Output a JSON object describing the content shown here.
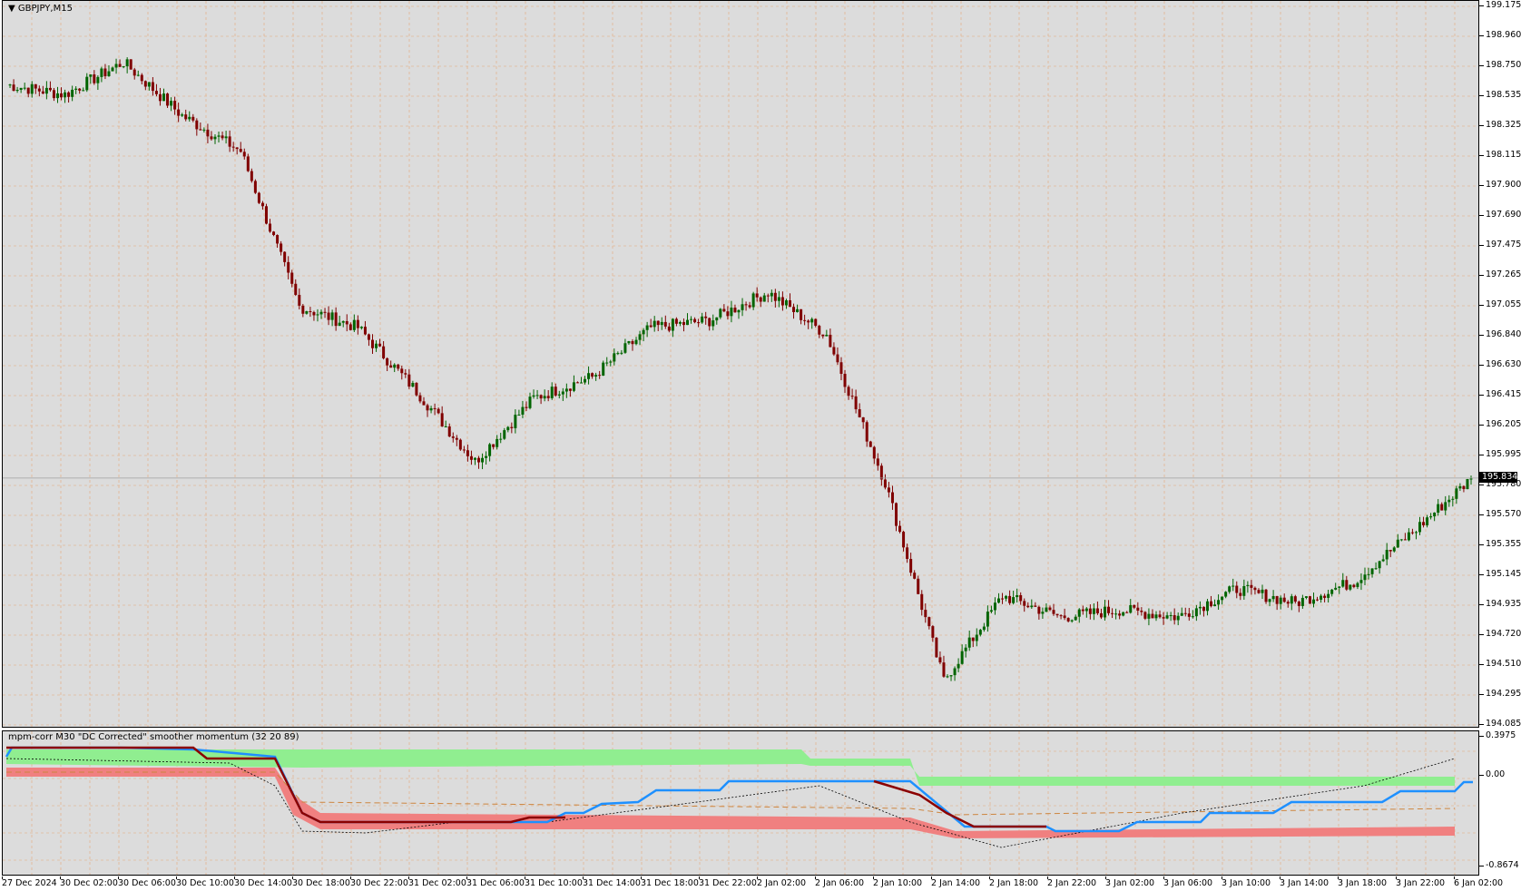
{
  "chart": {
    "symbol_label": "GBPJPY,M15",
    "current_price": "195.834",
    "price_scale": [
      "199.175",
      "198.960",
      "198.750",
      "198.535",
      "198.325",
      "198.115",
      "197.900",
      "197.690",
      "197.475",
      "197.265",
      "197.055",
      "196.840",
      "196.630",
      "196.415",
      "196.205",
      "195.995",
      "195.780",
      "195.570",
      "195.355",
      "195.145",
      "194.935",
      "194.720",
      "194.510",
      "194.295",
      "194.085"
    ],
    "time_labels": [
      "27 Dec 2024",
      "30 Dec 02:00",
      "30 Dec 06:00",
      "30 Dec 10:00",
      "30 Dec 14:00",
      "30 Dec 18:00",
      "30 Dec 22:00",
      "31 Dec 02:00",
      "31 Dec 06:00",
      "31 Dec 10:00",
      "31 Dec 14:00",
      "31 Dec 18:00",
      "31 Dec 22:00",
      "2 Jan 02:00",
      "2 Jan 06:00",
      "2 Jan 10:00",
      "2 Jan 14:00",
      "2 Jan 18:00",
      "2 Jan 22:00",
      "3 Jan 02:00",
      "3 Jan 06:00",
      "3 Jan 10:00",
      "3 Jan 14:00",
      "3 Jan 18:00",
      "3 Jan 22:00",
      "6 Jan 02:00"
    ],
    "colors": {
      "background": "#dcdcdc",
      "grid": "#e6a878",
      "bull": "#006400",
      "bear": "#800000"
    }
  },
  "indicator": {
    "title": "mpm-corr M30 \"DC Corrected\" smoother momentum (32 20 89)",
    "scale_top": "0.3975",
    "scale_zero": "0.00",
    "scale_bottom": "-0.8674",
    "colors": {
      "upper_band": "#90ee90",
      "lower_band": "#f08080",
      "main": "#1e90ff",
      "bear_line": "#8b0000",
      "dashed": "#cd853f",
      "dotted": "#000000"
    }
  },
  "chart_data": {
    "type": "candlestick",
    "symbol": "GBPJPY",
    "timeframe": "M15",
    "ylim": [
      194.085,
      199.175
    ],
    "close_path": [
      [
        "27 Dec 2024",
        198.62
      ],
      [
        "30 Dec 02:00",
        198.55
      ],
      [
        "30 Dec 06:00",
        198.78
      ],
      [
        "30 Dec 10:00",
        198.4
      ],
      [
        "30 Dec 14:00",
        198.15
      ],
      [
        "30 Dec 18:00",
        197.05
      ],
      [
        "30 Dec 22:00",
        196.9
      ],
      [
        "31 Dec 02:00",
        196.45
      ],
      [
        "31 Dec 06:00",
        195.95
      ],
      [
        "31 Dec 10:00",
        196.4
      ],
      [
        "31 Dec 14:00",
        196.55
      ],
      [
        "31 Dec 18:00",
        196.9
      ],
      [
        "31 Dec 22:00",
        196.95
      ],
      [
        "2 Jan 02:00",
        197.15
      ],
      [
        "2 Jan 06:00",
        196.85
      ],
      [
        "2 Jan 10:00",
        195.8
      ],
      [
        "2 Jan 14:00",
        194.4
      ],
      [
        "2 Jan 18:00",
        195.0
      ],
      [
        "2 Jan 22:00",
        194.85
      ],
      [
        "3 Jan 02:00",
        194.9
      ],
      [
        "3 Jan 06:00",
        194.85
      ],
      [
        "3 Jan 10:00",
        195.05
      ],
      [
        "3 Jan 14:00",
        194.95
      ],
      [
        "3 Jan 18:00",
        195.1
      ],
      [
        "3 Jan 22:00",
        195.45
      ],
      [
        "6 Jan 02:00",
        195.83
      ]
    ]
  }
}
